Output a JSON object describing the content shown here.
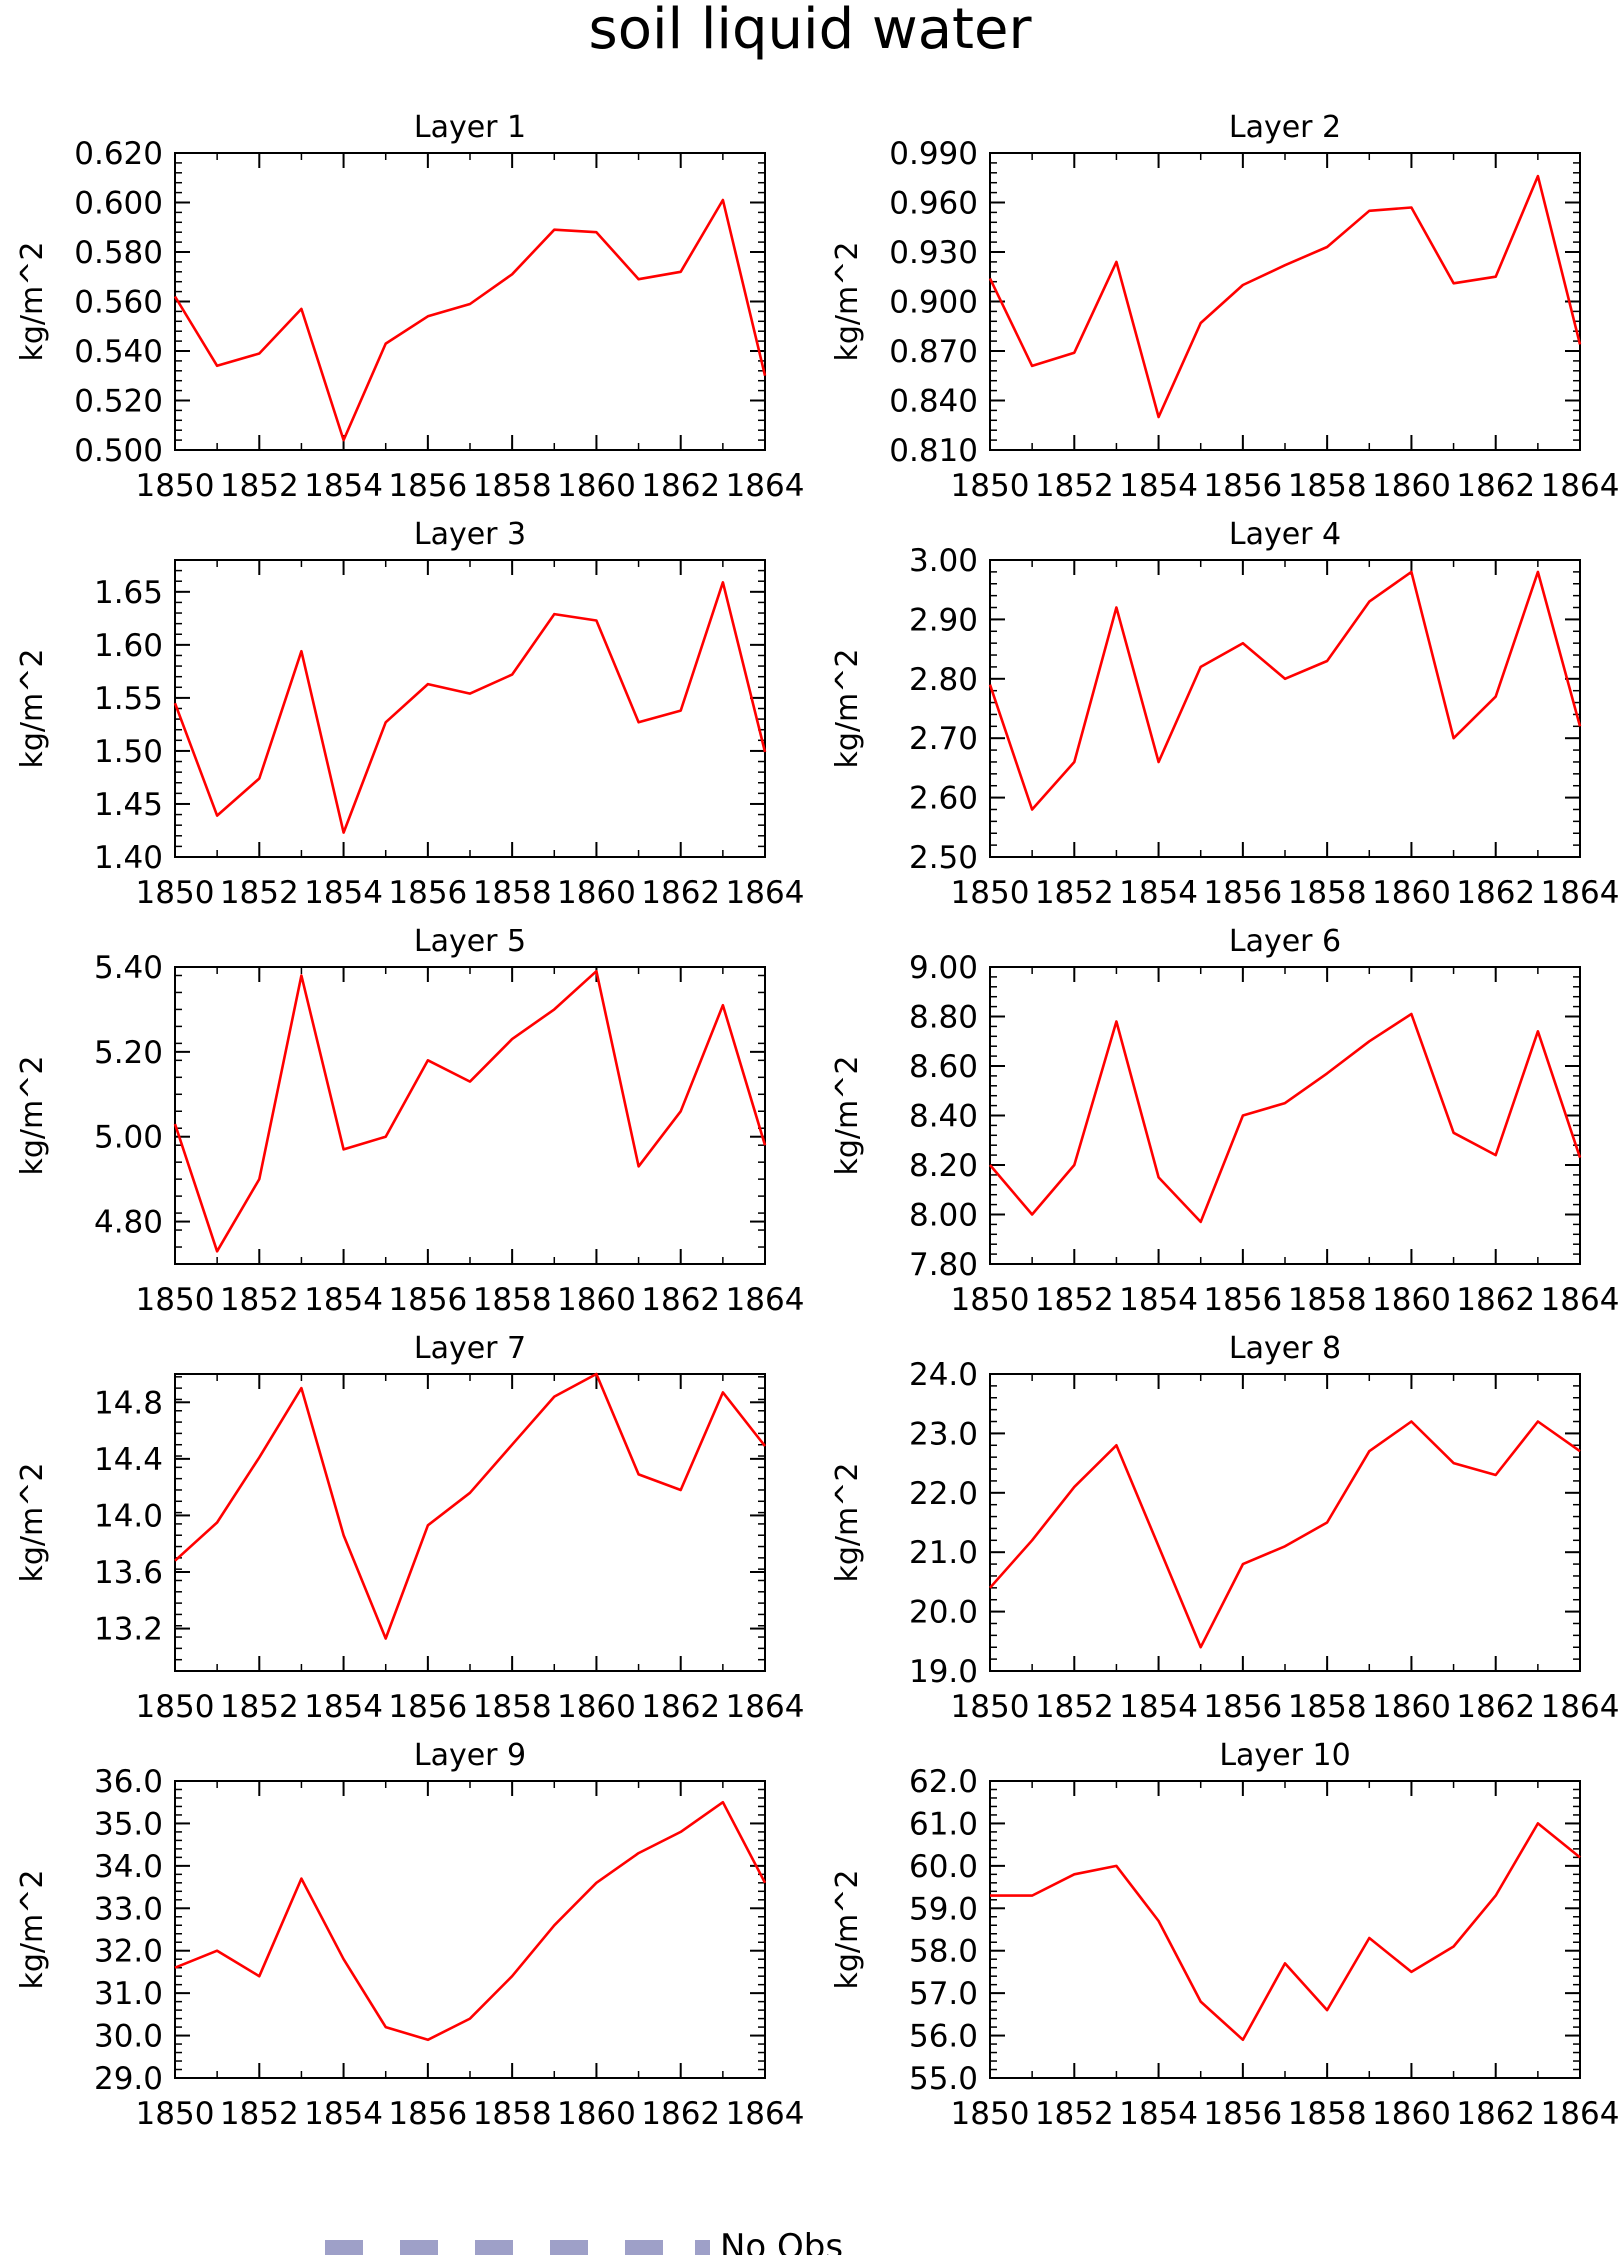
{
  "title": "soil liquid water",
  "legend": {
    "label": "No Obs"
  },
  "colors": {
    "line": "#ff0000",
    "axis": "#000000",
    "legend_box": "#9ea0c8"
  },
  "chart_data": [
    {
      "type": "line",
      "title": "Layer 1",
      "ylabel": "kg/m^2",
      "x": [
        1850,
        1851,
        1852,
        1853,
        1854,
        1855,
        1856,
        1857,
        1858,
        1859,
        1860,
        1861,
        1862,
        1863,
        1864
      ],
      "xticks": [
        "1850",
        "1852",
        "1854",
        "1856",
        "1858",
        "1860",
        "1862",
        "1864"
      ],
      "xlim": [
        1850,
        1864
      ],
      "yticks": [
        "0.500",
        "0.520",
        "0.540",
        "0.560",
        "0.580",
        "0.600",
        "0.620"
      ],
      "ylim": [
        0.5,
        0.62
      ],
      "series": [
        {
          "values": [
            0.562,
            0.534,
            0.539,
            0.557,
            0.504,
            0.543,
            0.554,
            0.559,
            0.571,
            0.589,
            0.588,
            0.569,
            0.572,
            0.601,
            0.53
          ]
        }
      ]
    },
    {
      "type": "line",
      "title": "Layer 2",
      "ylabel": "kg/m^2",
      "x": [
        1850,
        1851,
        1852,
        1853,
        1854,
        1855,
        1856,
        1857,
        1858,
        1859,
        1860,
        1861,
        1862,
        1863,
        1864
      ],
      "xticks": [
        "1850",
        "1852",
        "1854",
        "1856",
        "1858",
        "1860",
        "1862",
        "1864"
      ],
      "xlim": [
        1850,
        1864
      ],
      "yticks": [
        "0.810",
        "0.840",
        "0.870",
        "0.900",
        "0.930",
        "0.960",
        "0.990"
      ],
      "ylim": [
        0.81,
        0.99
      ],
      "series": [
        {
          "values": [
            0.914,
            0.861,
            0.869,
            0.924,
            0.83,
            0.887,
            0.91,
            0.922,
            0.933,
            0.955,
            0.957,
            0.911,
            0.915,
            0.976,
            0.874
          ]
        }
      ]
    },
    {
      "type": "line",
      "title": "Layer 3",
      "ylabel": "kg/m^2",
      "x": [
        1850,
        1851,
        1852,
        1853,
        1854,
        1855,
        1856,
        1857,
        1858,
        1859,
        1860,
        1861,
        1862,
        1863,
        1864
      ],
      "xticks": [
        "1850",
        "1852",
        "1854",
        "1856",
        "1858",
        "1860",
        "1862",
        "1864"
      ],
      "xlim": [
        1850,
        1864
      ],
      "yticks": [
        "1.40",
        "1.45",
        "1.50",
        "1.55",
        "1.60",
        "1.65"
      ],
      "ylim": [
        1.4,
        1.68
      ],
      "series": [
        {
          "values": [
            1.545,
            1.439,
            1.474,
            1.594,
            1.423,
            1.527,
            1.563,
            1.554,
            1.572,
            1.629,
            1.623,
            1.527,
            1.538,
            1.659,
            1.499
          ]
        }
      ]
    },
    {
      "type": "line",
      "title": "Layer 4",
      "ylabel": "kg/m^2",
      "x": [
        1850,
        1851,
        1852,
        1853,
        1854,
        1855,
        1856,
        1857,
        1858,
        1859,
        1860,
        1861,
        1862,
        1863,
        1864
      ],
      "xticks": [
        "1850",
        "1852",
        "1854",
        "1856",
        "1858",
        "1860",
        "1862",
        "1864"
      ],
      "xlim": [
        1850,
        1864
      ],
      "yticks": [
        "2.50",
        "2.60",
        "2.70",
        "2.80",
        "2.90",
        "3.00"
      ],
      "ylim": [
        2.5,
        3.0
      ],
      "series": [
        {
          "values": [
            2.79,
            2.58,
            2.66,
            2.92,
            2.66,
            2.82,
            2.86,
            2.8,
            2.83,
            2.93,
            2.98,
            2.7,
            2.77,
            2.98,
            2.72
          ]
        }
      ]
    },
    {
      "type": "line",
      "title": "Layer 5",
      "ylabel": "kg/m^2",
      "x": [
        1850,
        1851,
        1852,
        1853,
        1854,
        1855,
        1856,
        1857,
        1858,
        1859,
        1860,
        1861,
        1862,
        1863,
        1864
      ],
      "xticks": [
        "1850",
        "1852",
        "1854",
        "1856",
        "1858",
        "1860",
        "1862",
        "1864"
      ],
      "xlim": [
        1850,
        1864
      ],
      "yticks": [
        "4.80",
        "5.00",
        "5.20",
        "5.40"
      ],
      "ylim": [
        4.7,
        5.4
      ],
      "series": [
        {
          "values": [
            5.03,
            4.73,
            4.9,
            5.38,
            4.97,
            5.0,
            5.18,
            5.13,
            5.23,
            5.3,
            5.39,
            4.93,
            5.06,
            5.31,
            4.98
          ]
        }
      ]
    },
    {
      "type": "line",
      "title": "Layer 6",
      "ylabel": "kg/m^2",
      "x": [
        1850,
        1851,
        1852,
        1853,
        1854,
        1855,
        1856,
        1857,
        1858,
        1859,
        1860,
        1861,
        1862,
        1863,
        1864
      ],
      "xticks": [
        "1850",
        "1852",
        "1854",
        "1856",
        "1858",
        "1860",
        "1862",
        "1864"
      ],
      "xlim": [
        1850,
        1864
      ],
      "yticks": [
        "7.80",
        "8.00",
        "8.20",
        "8.40",
        "8.60",
        "8.80",
        "9.00"
      ],
      "ylim": [
        7.8,
        9.0
      ],
      "series": [
        {
          "values": [
            8.2,
            8.0,
            8.2,
            8.78,
            8.15,
            7.97,
            8.4,
            8.45,
            8.57,
            8.7,
            8.81,
            8.33,
            8.24,
            8.74,
            8.23
          ]
        }
      ]
    },
    {
      "type": "line",
      "title": "Layer 7",
      "ylabel": "kg/m^2",
      "x": [
        1850,
        1851,
        1852,
        1853,
        1854,
        1855,
        1856,
        1857,
        1858,
        1859,
        1860,
        1861,
        1862,
        1863,
        1864
      ],
      "xticks": [
        "1850",
        "1852",
        "1854",
        "1856",
        "1858",
        "1860",
        "1862",
        "1864"
      ],
      "xlim": [
        1850,
        1864
      ],
      "yticks": [
        "13.2",
        "13.6",
        "14.0",
        "14.4",
        "14.8"
      ],
      "ylim": [
        12.9,
        15.0
      ],
      "series": [
        {
          "values": [
            13.68,
            13.95,
            14.41,
            14.9,
            13.86,
            13.13,
            13.93,
            14.16,
            14.5,
            14.84,
            15.0,
            14.29,
            14.18,
            14.87,
            14.49
          ]
        }
      ]
    },
    {
      "type": "line",
      "title": "Layer 8",
      "ylabel": "kg/m^2",
      "x": [
        1850,
        1851,
        1852,
        1853,
        1854,
        1855,
        1856,
        1857,
        1858,
        1859,
        1860,
        1861,
        1862,
        1863,
        1864
      ],
      "xticks": [
        "1850",
        "1852",
        "1854",
        "1856",
        "1858",
        "1860",
        "1862",
        "1864"
      ],
      "xlim": [
        1850,
        1864
      ],
      "yticks": [
        "19.0",
        "20.0",
        "21.0",
        "22.0",
        "23.0",
        "24.0"
      ],
      "ylim": [
        19.0,
        24.0
      ],
      "series": [
        {
          "values": [
            20.4,
            21.2,
            22.1,
            22.8,
            21.1,
            19.4,
            20.8,
            21.1,
            21.5,
            22.7,
            23.2,
            22.5,
            22.3,
            23.2,
            22.7
          ]
        }
      ]
    },
    {
      "type": "line",
      "title": "Layer 9",
      "ylabel": "kg/m^2",
      "x": [
        1850,
        1851,
        1852,
        1853,
        1854,
        1855,
        1856,
        1857,
        1858,
        1859,
        1860,
        1861,
        1862,
        1863,
        1864
      ],
      "xticks": [
        "1850",
        "1852",
        "1854",
        "1856",
        "1858",
        "1860",
        "1862",
        "1864"
      ],
      "xlim": [
        1850,
        1864
      ],
      "yticks": [
        "29.0",
        "30.0",
        "31.0",
        "32.0",
        "33.0",
        "34.0",
        "35.0",
        "36.0"
      ],
      "ylim": [
        29.0,
        36.0
      ],
      "series": [
        {
          "values": [
            31.6,
            32.0,
            31.4,
            33.7,
            31.8,
            30.2,
            29.9,
            30.4,
            31.4,
            32.6,
            33.6,
            34.3,
            34.8,
            35.5,
            33.6
          ]
        }
      ]
    },
    {
      "type": "line",
      "title": "Layer 10",
      "ylabel": "kg/m^2",
      "x": [
        1850,
        1851,
        1852,
        1853,
        1854,
        1855,
        1856,
        1857,
        1858,
        1859,
        1860,
        1861,
        1862,
        1863,
        1864
      ],
      "xticks": [
        "1850",
        "1852",
        "1854",
        "1856",
        "1858",
        "1860",
        "1862",
        "1864"
      ],
      "xlim": [
        1850,
        1864
      ],
      "yticks": [
        "55.0",
        "56.0",
        "57.0",
        "58.0",
        "59.0",
        "60.0",
        "61.0",
        "62.0"
      ],
      "ylim": [
        55.0,
        62.0
      ],
      "series": [
        {
          "values": [
            59.3,
            59.3,
            59.8,
            60.0,
            58.7,
            56.8,
            55.9,
            57.7,
            56.6,
            58.3,
            57.5,
            58.1,
            59.3,
            61.0,
            60.2
          ]
        }
      ]
    }
  ]
}
